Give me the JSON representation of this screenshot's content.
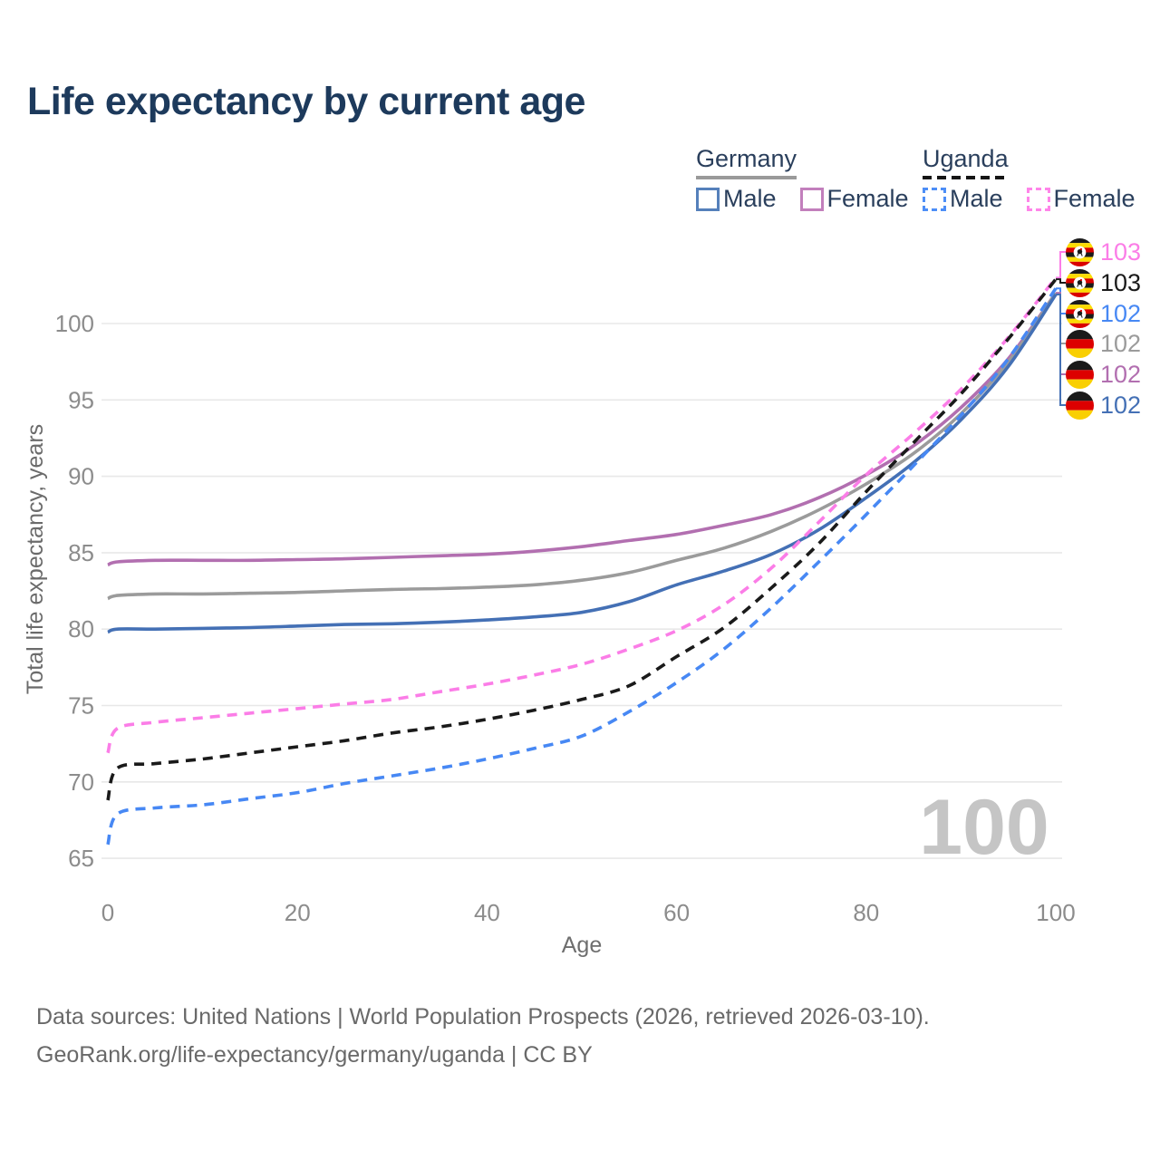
{
  "title": "Life expectancy by current age",
  "legend": {
    "groups": [
      {
        "id": "germany",
        "country": "Germany",
        "line_style": "solid",
        "underline_color": "#9a9a9a",
        "items": [
          {
            "id": "germany-male",
            "label": "Male",
            "color": "#5580bb",
            "dashed": false
          },
          {
            "id": "germany-female",
            "label": "Female",
            "color": "#c27fbc",
            "dashed": false
          }
        ]
      },
      {
        "id": "uganda",
        "country": "Uganda",
        "line_style": "dashed",
        "underline_color": "#151515",
        "items": [
          {
            "id": "uganda-male",
            "label": "Male",
            "color": "#4d8ef7",
            "dashed": true
          },
          {
            "id": "uganda-female",
            "label": "Female",
            "color": "#ff85e9",
            "dashed": true
          }
        ]
      }
    ]
  },
  "chart_data": {
    "type": "line",
    "title": "Life expectancy by current age",
    "xlabel": "Age",
    "ylabel": "Total life expectancy, years",
    "xlim": [
      0,
      100
    ],
    "ylim": [
      65,
      104
    ],
    "xticks": [
      0,
      20,
      40,
      60,
      80,
      100
    ],
    "yticks": [
      65,
      70,
      75,
      80,
      85,
      90,
      95,
      100
    ],
    "grid": "horizontal",
    "watermark": "100",
    "legend_position": "top-right",
    "x": [
      0,
      1,
      5,
      10,
      15,
      20,
      25,
      30,
      35,
      40,
      45,
      50,
      55,
      60,
      65,
      70,
      75,
      80,
      85,
      90,
      95,
      100
    ],
    "series": [
      {
        "id": "germany-female",
        "name": "Germany Female",
        "country": "Germany",
        "sex": "Female",
        "color": "#b26fb0",
        "dash": false,
        "values": [
          84.2,
          84.4,
          84.5,
          84.5,
          84.5,
          84.55,
          84.6,
          84.7,
          84.8,
          84.9,
          85.1,
          85.4,
          85.8,
          86.2,
          86.8,
          87.5,
          88.6,
          90.1,
          92.0,
          94.5,
          97.7,
          102.0
        ]
      },
      {
        "id": "germany-total",
        "name": "Germany (both sexes)",
        "country": "Germany",
        "sex": "Total",
        "color": "#9b9b9b",
        "dash": false,
        "values": [
          82.0,
          82.2,
          82.3,
          82.3,
          82.35,
          82.4,
          82.5,
          82.6,
          82.65,
          82.75,
          82.9,
          83.2,
          83.7,
          84.5,
          85.3,
          86.4,
          87.8,
          89.5,
          91.5,
          94.1,
          97.5,
          102.0
        ]
      },
      {
        "id": "germany-male",
        "name": "Germany Male",
        "country": "Germany",
        "sex": "Male",
        "color": "#4470b5",
        "dash": false,
        "values": [
          79.8,
          80.0,
          80.0,
          80.05,
          80.1,
          80.2,
          80.3,
          80.35,
          80.45,
          80.6,
          80.8,
          81.1,
          81.8,
          82.9,
          83.8,
          84.9,
          86.5,
          88.6,
          90.9,
          93.7,
          97.2,
          101.9
        ]
      },
      {
        "id": "uganda-female",
        "name": "Uganda Female",
        "country": "Uganda",
        "sex": "Female",
        "color": "#fb7de7",
        "dash": true,
        "values": [
          71.9,
          73.5,
          73.9,
          74.2,
          74.5,
          74.8,
          75.1,
          75.4,
          75.9,
          76.4,
          77.0,
          77.7,
          78.7,
          79.9,
          81.6,
          84.0,
          87.0,
          90.1,
          92.8,
          95.7,
          99.1,
          103.0
        ]
      },
      {
        "id": "uganda-total",
        "name": "Uganda (both sexes)",
        "country": "Uganda",
        "sex": "Total",
        "color": "#1a1a1a",
        "dash": true,
        "values": [
          68.8,
          70.9,
          71.2,
          71.5,
          71.9,
          72.3,
          72.7,
          73.2,
          73.6,
          74.1,
          74.7,
          75.4,
          76.3,
          78.2,
          80.1,
          82.7,
          85.6,
          89.0,
          92.2,
          95.4,
          99.0,
          102.9
        ]
      },
      {
        "id": "uganda-male",
        "name": "Uganda Male",
        "country": "Uganda",
        "sex": "Male",
        "color": "#4788f4",
        "dash": true,
        "values": [
          65.9,
          67.9,
          68.3,
          68.5,
          68.9,
          69.3,
          69.9,
          70.4,
          70.9,
          71.5,
          72.2,
          73.0,
          74.6,
          76.5,
          78.7,
          81.4,
          84.4,
          87.5,
          90.7,
          94.0,
          97.7,
          102.3
        ]
      }
    ]
  },
  "end_labels": [
    {
      "series": "uganda-female",
      "flag": "uganda",
      "value": "103",
      "color": "#fb7de7"
    },
    {
      "series": "uganda-total",
      "flag": "uganda",
      "value": "103",
      "color": "#1a1a1a"
    },
    {
      "series": "uganda-male",
      "flag": "uganda",
      "value": "102",
      "color": "#4788f4"
    },
    {
      "series": "germany-total",
      "flag": "germany",
      "value": "102",
      "color": "#9b9b9b"
    },
    {
      "series": "germany-female",
      "flag": "germany",
      "value": "102",
      "color": "#b26fb0"
    },
    {
      "series": "germany-male",
      "flag": "germany",
      "value": "102",
      "color": "#4470b5"
    }
  ],
  "footer": {
    "line1": "Data sources: United Nations | World Population Prospects (2026, retrieved 2026-03-10).",
    "line2": "GeoRank.org/life-expectancy/germany/uganda | CC BY"
  }
}
